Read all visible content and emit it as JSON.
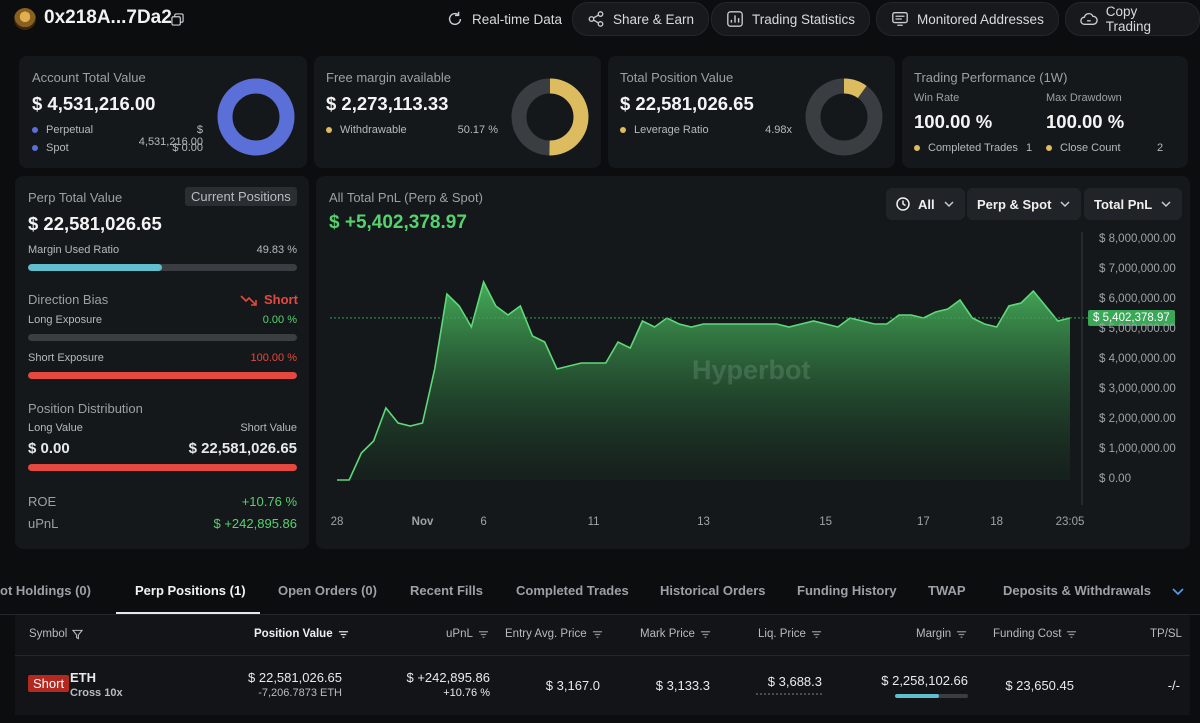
{
  "header": {
    "address": "0x218A...7Da2",
    "nav": [
      {
        "label": "Real-time Data",
        "icon": "refresh-icon"
      },
      {
        "label": "Share & Earn",
        "icon": "share-icon"
      },
      {
        "label": "Trading Statistics",
        "icon": "statistics-icon"
      },
      {
        "label": "Monitored Addresses",
        "icon": "monitor-icon"
      },
      {
        "label": "Copy Trading",
        "icon": "copy-trading-icon"
      }
    ]
  },
  "summary": {
    "account": {
      "title": "Account Total Value",
      "value": "$ 4,531,216.00",
      "rows": [
        {
          "label": "Perpetual",
          "value": "$ 4,531,216.00",
          "color": "#5a6fd8"
        },
        {
          "label": "Spot",
          "value": "$ 0.00",
          "color": "#5a6fd8"
        }
      ],
      "donut_fraction": 1.0,
      "donut_color": "#5a6fd8"
    },
    "margin": {
      "title": "Free margin available",
      "value": "$ 2,273,113.33",
      "row_label": "Withdrawable",
      "row_value": "50.17 %",
      "donut_fraction": 0.5017,
      "donut_color": "#dcbc5e"
    },
    "position": {
      "title": "Total Position Value",
      "value": "$ 22,581,026.65",
      "row_label": "Leverage Ratio",
      "row_value": "4.98x",
      "donut_fraction": 0.1,
      "donut_color": "#dcbc5e"
    },
    "performance": {
      "title": "Trading Performance (1W)",
      "win_rate_label": "Win Rate",
      "win_rate": "100.00 %",
      "drawdown_label": "Max Drawdown",
      "drawdown": "100.00 %",
      "completed_label": "Completed Trades",
      "completed_value": "1",
      "close_label": "Close Count",
      "close_value": "2"
    }
  },
  "perp": {
    "title": "Perp Total Value",
    "tag": "Current Positions",
    "value": "$ 22,581,026.65",
    "margin_label": "Margin Used Ratio",
    "margin_value": "49.83 %",
    "margin_fraction": 0.4983,
    "bias_label": "Direction Bias",
    "bias_value": "Short",
    "long_label": "Long Exposure",
    "long_value": "0.00 %",
    "long_fraction": 0,
    "short_label": "Short Exposure",
    "short_value": "100.00 %",
    "short_fraction": 1.0,
    "dist_label": "Position Distribution",
    "long_value_label": "Long Value",
    "short_value_label": "Short Value",
    "long_amount": "$ 0.00",
    "short_amount": "$ 22,581,026.65",
    "roe_label": "ROE",
    "roe_value": "+10.76 %",
    "upnl_label": "uPnL",
    "upnl_value": "$ +242,895.86"
  },
  "pnl": {
    "title": "All Total PnL (Perp & Spot)",
    "value": "$ +5,402,378.97",
    "filters": [
      "All",
      "Perp & Spot",
      "Total PnL"
    ],
    "watermark": "Hyperbot",
    "current_label": "$ 5,402,378.97"
  },
  "chart_data": {
    "type": "area",
    "title": "All Total PnL (Perp & Spot)",
    "xlabel": "",
    "ylabel": "",
    "ylim": [
      0,
      8000000
    ],
    "yticks": [
      "$ 8,000,000.00",
      "$ 7,000,000.00",
      "$ 6,000,000.00",
      "$ 5,000,000.00",
      "$ 4,000,000.00",
      "$ 3,000,000.00",
      "$ 2,000,000.00",
      "$ 1,000,000.00",
      "$ 0.00"
    ],
    "xticks": [
      "28",
      "Nov",
      "6",
      "11",
      "13",
      "15",
      "17",
      "18",
      "23:05"
    ],
    "x_tick_index": [
      0,
      7,
      12,
      21,
      30,
      40,
      48,
      54,
      60
    ],
    "series": [
      {
        "values": [
          0,
          0,
          900000,
          1300000,
          2400000,
          1900000,
          1800000,
          1900000,
          3700000,
          6200000,
          5800000,
          5100000,
          6600000,
          5800000,
          5500000,
          5800000,
          4800000,
          4600000,
          3700000,
          3800000,
          3900000,
          3900000,
          3900000,
          4600000,
          4400000,
          5300000,
          5100000,
          5400000,
          5200000,
          5100000,
          5200000,
          5200000,
          5200000,
          5200000,
          5200000,
          5200000,
          5200000,
          5100000,
          5200000,
          5300000,
          5200000,
          5100000,
          5400000,
          5300000,
          5200000,
          5200000,
          5500000,
          5500000,
          5400000,
          5600000,
          5700000,
          6000000,
          5400000,
          5200000,
          5100000,
          5800000,
          5900000,
          6300000,
          5800000,
          5300000,
          5400000
        ]
      }
    ],
    "current": 5402378.97,
    "grid": false,
    "legend": "none"
  },
  "tabs": [
    {
      "label": "ot Holdings (0)",
      "active": false
    },
    {
      "label": "Perp Positions (1)",
      "active": true
    },
    {
      "label": "Open Orders (0)",
      "active": false
    },
    {
      "label": "Recent Fills",
      "active": false
    },
    {
      "label": "Completed Trades",
      "active": false
    },
    {
      "label": "Historical Orders",
      "active": false
    },
    {
      "label": "Funding History",
      "active": false
    },
    {
      "label": "TWAP",
      "active": false
    },
    {
      "label": "Deposits & Withdrawals",
      "active": false
    }
  ],
  "table": {
    "headers": [
      "Symbol",
      "Position Value",
      "uPnL",
      "Entry Avg. Price",
      "Mark Price",
      "Liq. Price",
      "Margin",
      "Funding Cost",
      "TP/SL"
    ],
    "row": {
      "side": "Short",
      "symbol": "ETH",
      "mode": "Cross 10x",
      "position_value": "$ 22,581,026.65",
      "position_size": "-7,206.7873 ETH",
      "upnl": "$ +242,895.86",
      "upnl_pct": "+10.76 %",
      "entry_price": "$ 3,167.0",
      "mark_price": "$ 3,133.3",
      "liq_price": "$ 3,688.3",
      "margin": "$ 2,258,102.66",
      "margin_fraction": 0.6,
      "funding_cost": "$ 23,650.45",
      "tpsl": "-/-"
    }
  }
}
